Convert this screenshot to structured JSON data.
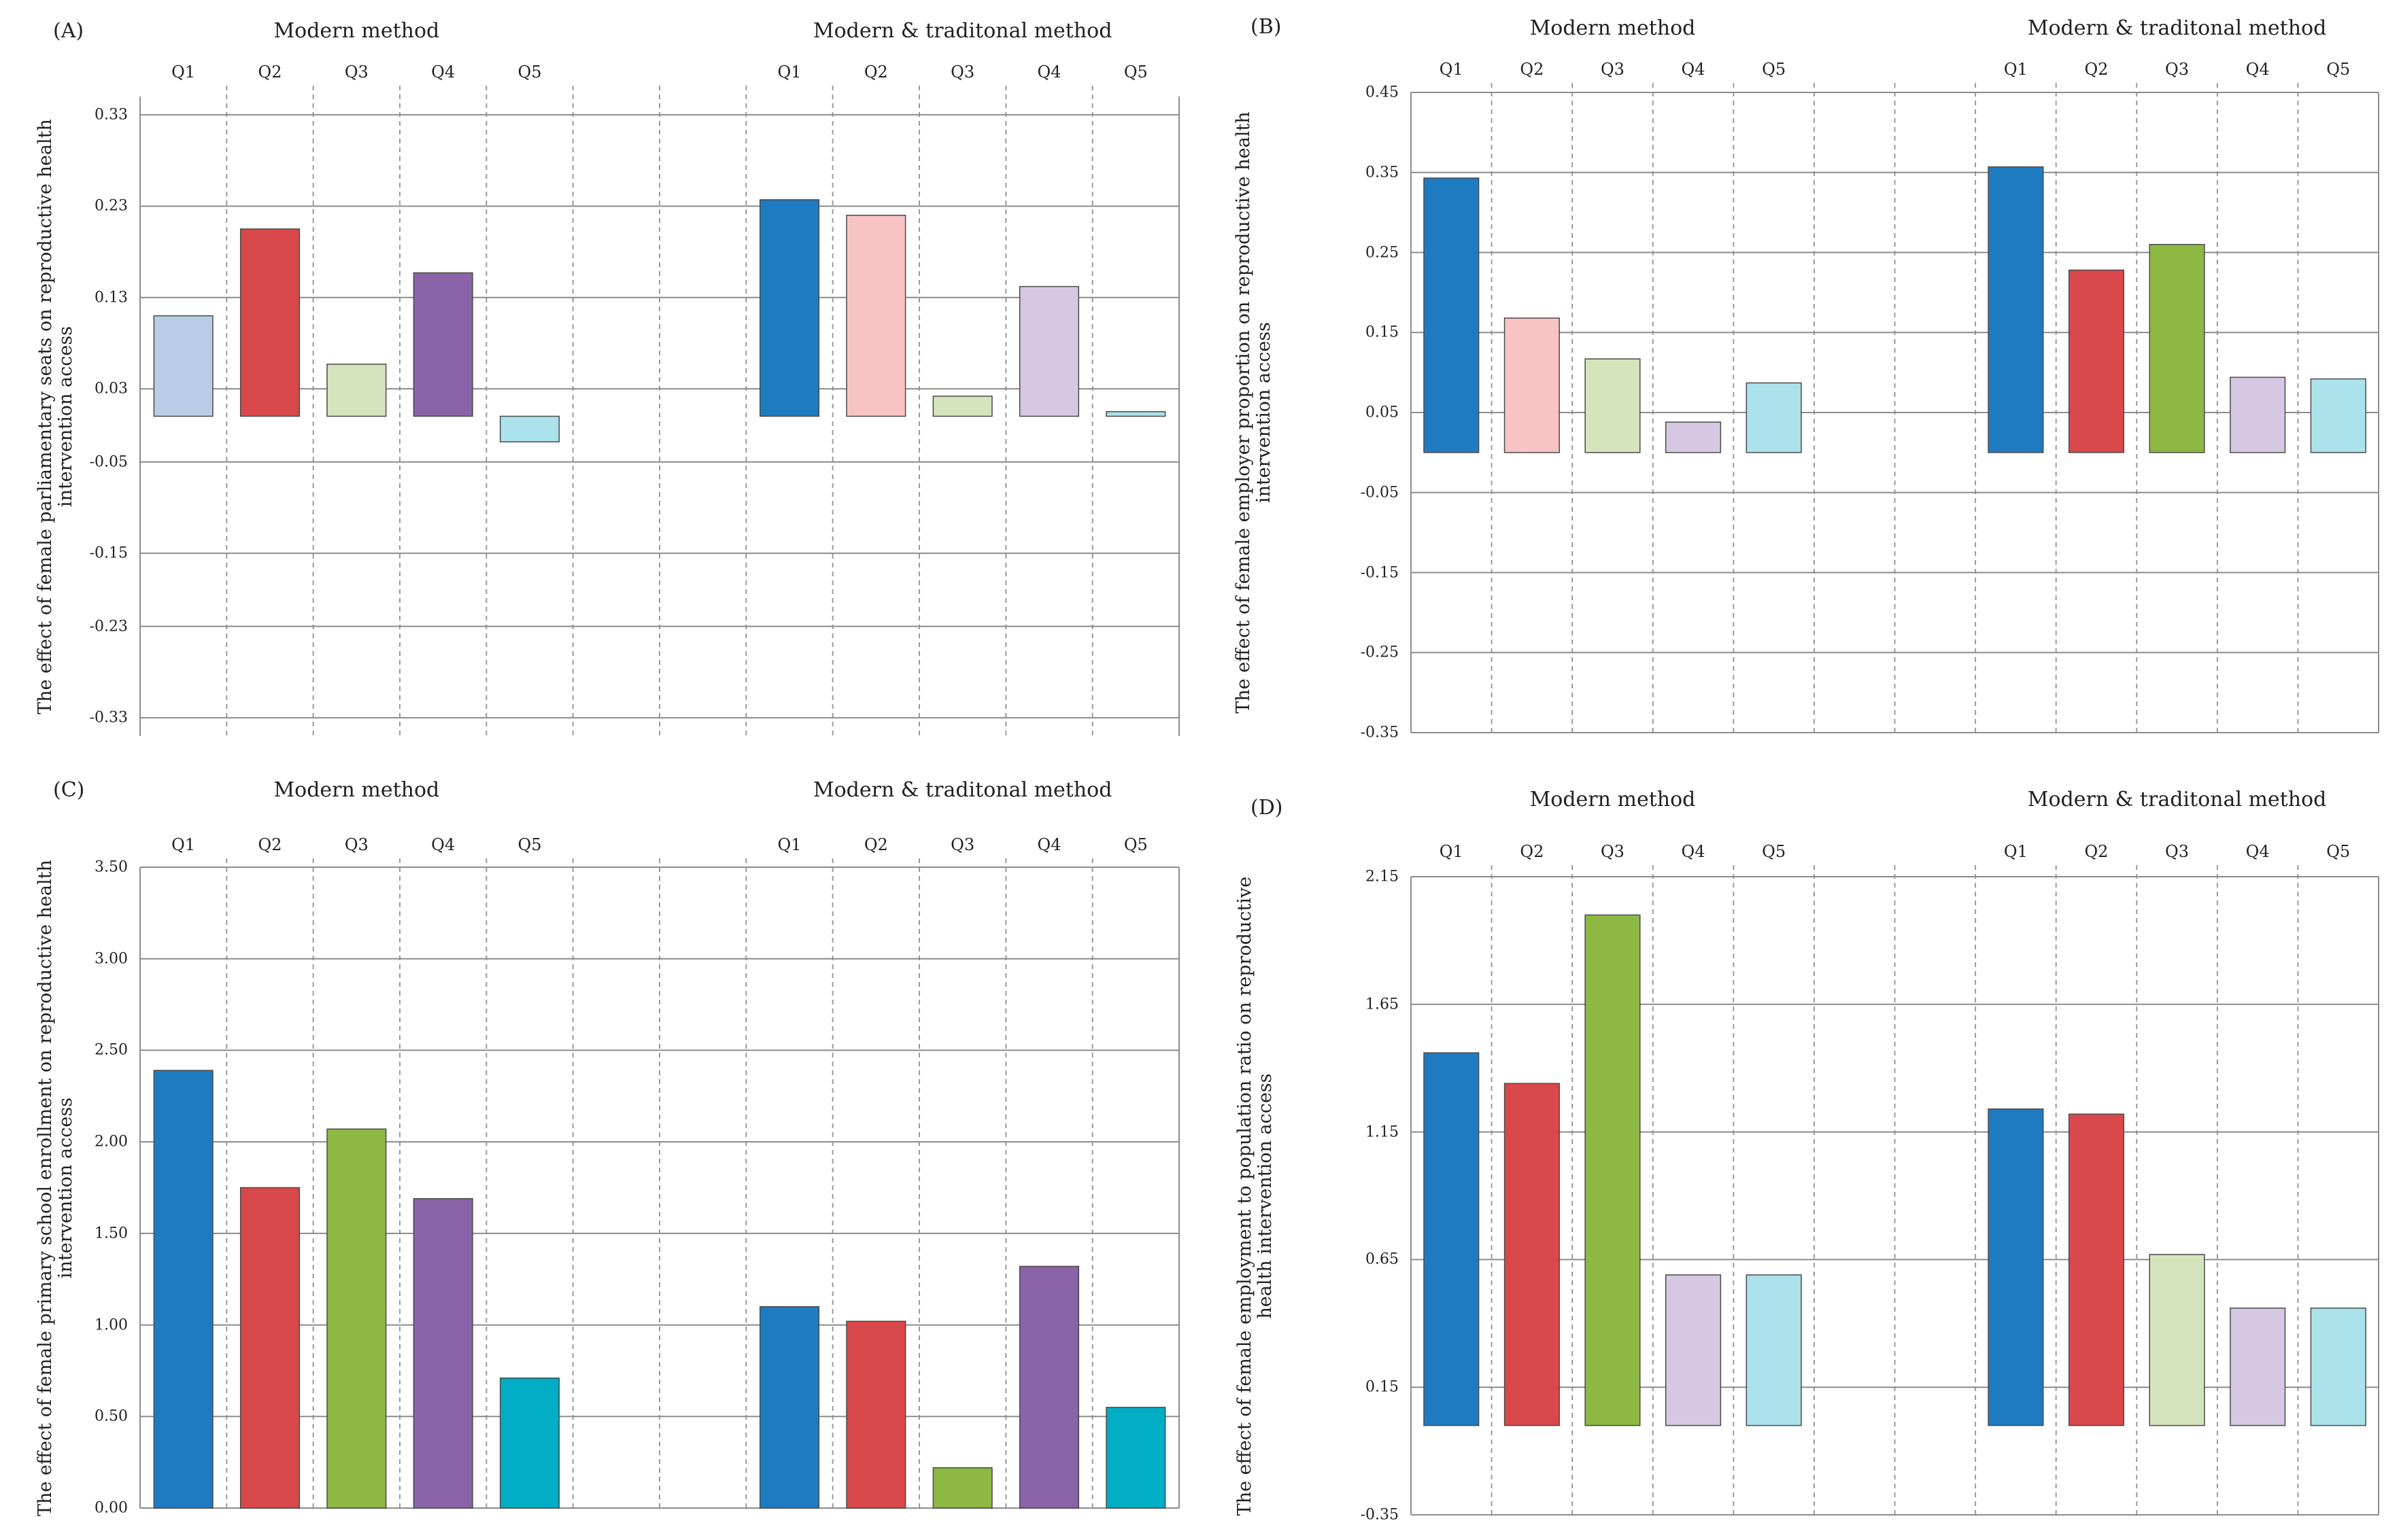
{
  "chart_data": [
    {
      "type": "bar",
      "panel_label": "(A)",
      "ylabel_lines": [
        "The effect of female parliamentary seats on reproductive health",
        "intervention access"
      ],
      "ylim": [
        -0.35,
        0.35
      ],
      "yticks": [
        "0.33",
        "0.23",
        "0.13",
        "0.03",
        "-0.05",
        "-0.15",
        "-0.23",
        "-0.33"
      ],
      "groups": [
        {
          "title": "Modern method",
          "categories": [
            "Q1",
            "Q2",
            "Q3",
            "Q4",
            "Q5"
          ],
          "values": [
            0.11,
            0.205,
            0.057,
            0.157,
            -0.028
          ],
          "colors": [
            "#b9cde6",
            "#d9484a",
            "#d6e4bd",
            "#8a63a8",
            "#abe2ec"
          ]
        },
        {
          "title": "Modern & traditonal method",
          "categories": [
            "Q1",
            "Q2",
            "Q3",
            "Q4",
            "Q5"
          ],
          "values": [
            0.237,
            0.22,
            0.022,
            0.142,
            0.005
          ],
          "colors": [
            "#1f7bc1",
            "#f7c3c3",
            "#d6e4bd",
            "#d6c8e2",
            "#abe2ec"
          ]
        }
      ]
    },
    {
      "type": "bar",
      "panel_label": "(B)",
      "ylabel_lines": [
        "The effect of female employer proportion on reproductive health",
        "intervention access"
      ],
      "ylim": [
        -0.35,
        0.45
      ],
      "yticks": [
        "0.45",
        "0.35",
        "0.25",
        "0.15",
        "0.05",
        "-0.05",
        "-0.15",
        "-0.25",
        "-0.35"
      ],
      "groups": [
        {
          "title": "Modern method",
          "categories": [
            "Q1",
            "Q2",
            "Q3",
            "Q4",
            "Q5"
          ],
          "values": [
            0.343,
            0.168,
            0.117,
            0.038,
            0.087
          ],
          "colors": [
            "#1f7bc1",
            "#f7c3c3",
            "#d6e4bd",
            "#d6c8e2",
            "#abe2ec"
          ]
        },
        {
          "title": "Modern & traditonal method",
          "categories": [
            "Q1",
            "Q2",
            "Q3",
            "Q4",
            "Q5"
          ],
          "values": [
            0.357,
            0.228,
            0.26,
            0.094,
            0.092
          ],
          "colors": [
            "#1f7bc1",
            "#d9484a",
            "#8cb843",
            "#d6c8e2",
            "#abe2ec"
          ]
        }
      ]
    },
    {
      "type": "bar",
      "panel_label": "(C)",
      "ylabel_lines": [
        "The effect of female primary school enrollment on reproductive health",
        "intervention access"
      ],
      "ylim": [
        0,
        3.5
      ],
      "yticks": [
        "3.50",
        "3.00",
        "2.50",
        "2.00",
        "1.50",
        "1.00",
        "0.50",
        "0.00"
      ],
      "groups": [
        {
          "title": "Modern method",
          "categories": [
            "Q1",
            "Q2",
            "Q3",
            "Q4",
            "Q5"
          ],
          "values": [
            2.39,
            1.75,
            2.07,
            1.69,
            0.71
          ],
          "colors": [
            "#1f7bc1",
            "#d9484a",
            "#8cb843",
            "#8a63a8",
            "#00adc5"
          ]
        },
        {
          "title": "Modern & traditonal method",
          "categories": [
            "Q1",
            "Q2",
            "Q3",
            "Q4",
            "Q5"
          ],
          "values": [
            1.1,
            1.02,
            0.22,
            1.32,
            0.55
          ],
          "colors": [
            "#1f7bc1",
            "#d9484a",
            "#8cb843",
            "#8a63a8",
            "#00adc5"
          ]
        }
      ]
    },
    {
      "type": "bar",
      "panel_label": "(D)",
      "ylabel_lines": [
        "The effect of female employment to population ratio on reproductive",
        "health intervention access"
      ],
      "ylim": [
        -0.35,
        2.15
      ],
      "yticks": [
        "2.15",
        "1.65",
        "1.15",
        "0.65",
        "0.15",
        "-0.35"
      ],
      "groups": [
        {
          "title": "Modern method",
          "categories": [
            "Q1",
            "Q2",
            "Q3",
            "Q4",
            "Q5"
          ],
          "values": [
            1.46,
            1.34,
            2.0,
            0.59,
            0.59
          ],
          "colors": [
            "#1f7bc1",
            "#d9484a",
            "#8cb843",
            "#d6c8e2",
            "#abe2ec"
          ]
        },
        {
          "title": "Modern & traditonal method",
          "categories": [
            "Q1",
            "Q2",
            "Q3",
            "Q4",
            "Q5"
          ],
          "values": [
            1.24,
            1.22,
            0.67,
            0.46,
            0.46
          ],
          "colors": [
            "#1f7bc1",
            "#d9484a",
            "#d6e4bd",
            "#d6c8e2",
            "#abe2ec"
          ]
        }
      ]
    }
  ]
}
